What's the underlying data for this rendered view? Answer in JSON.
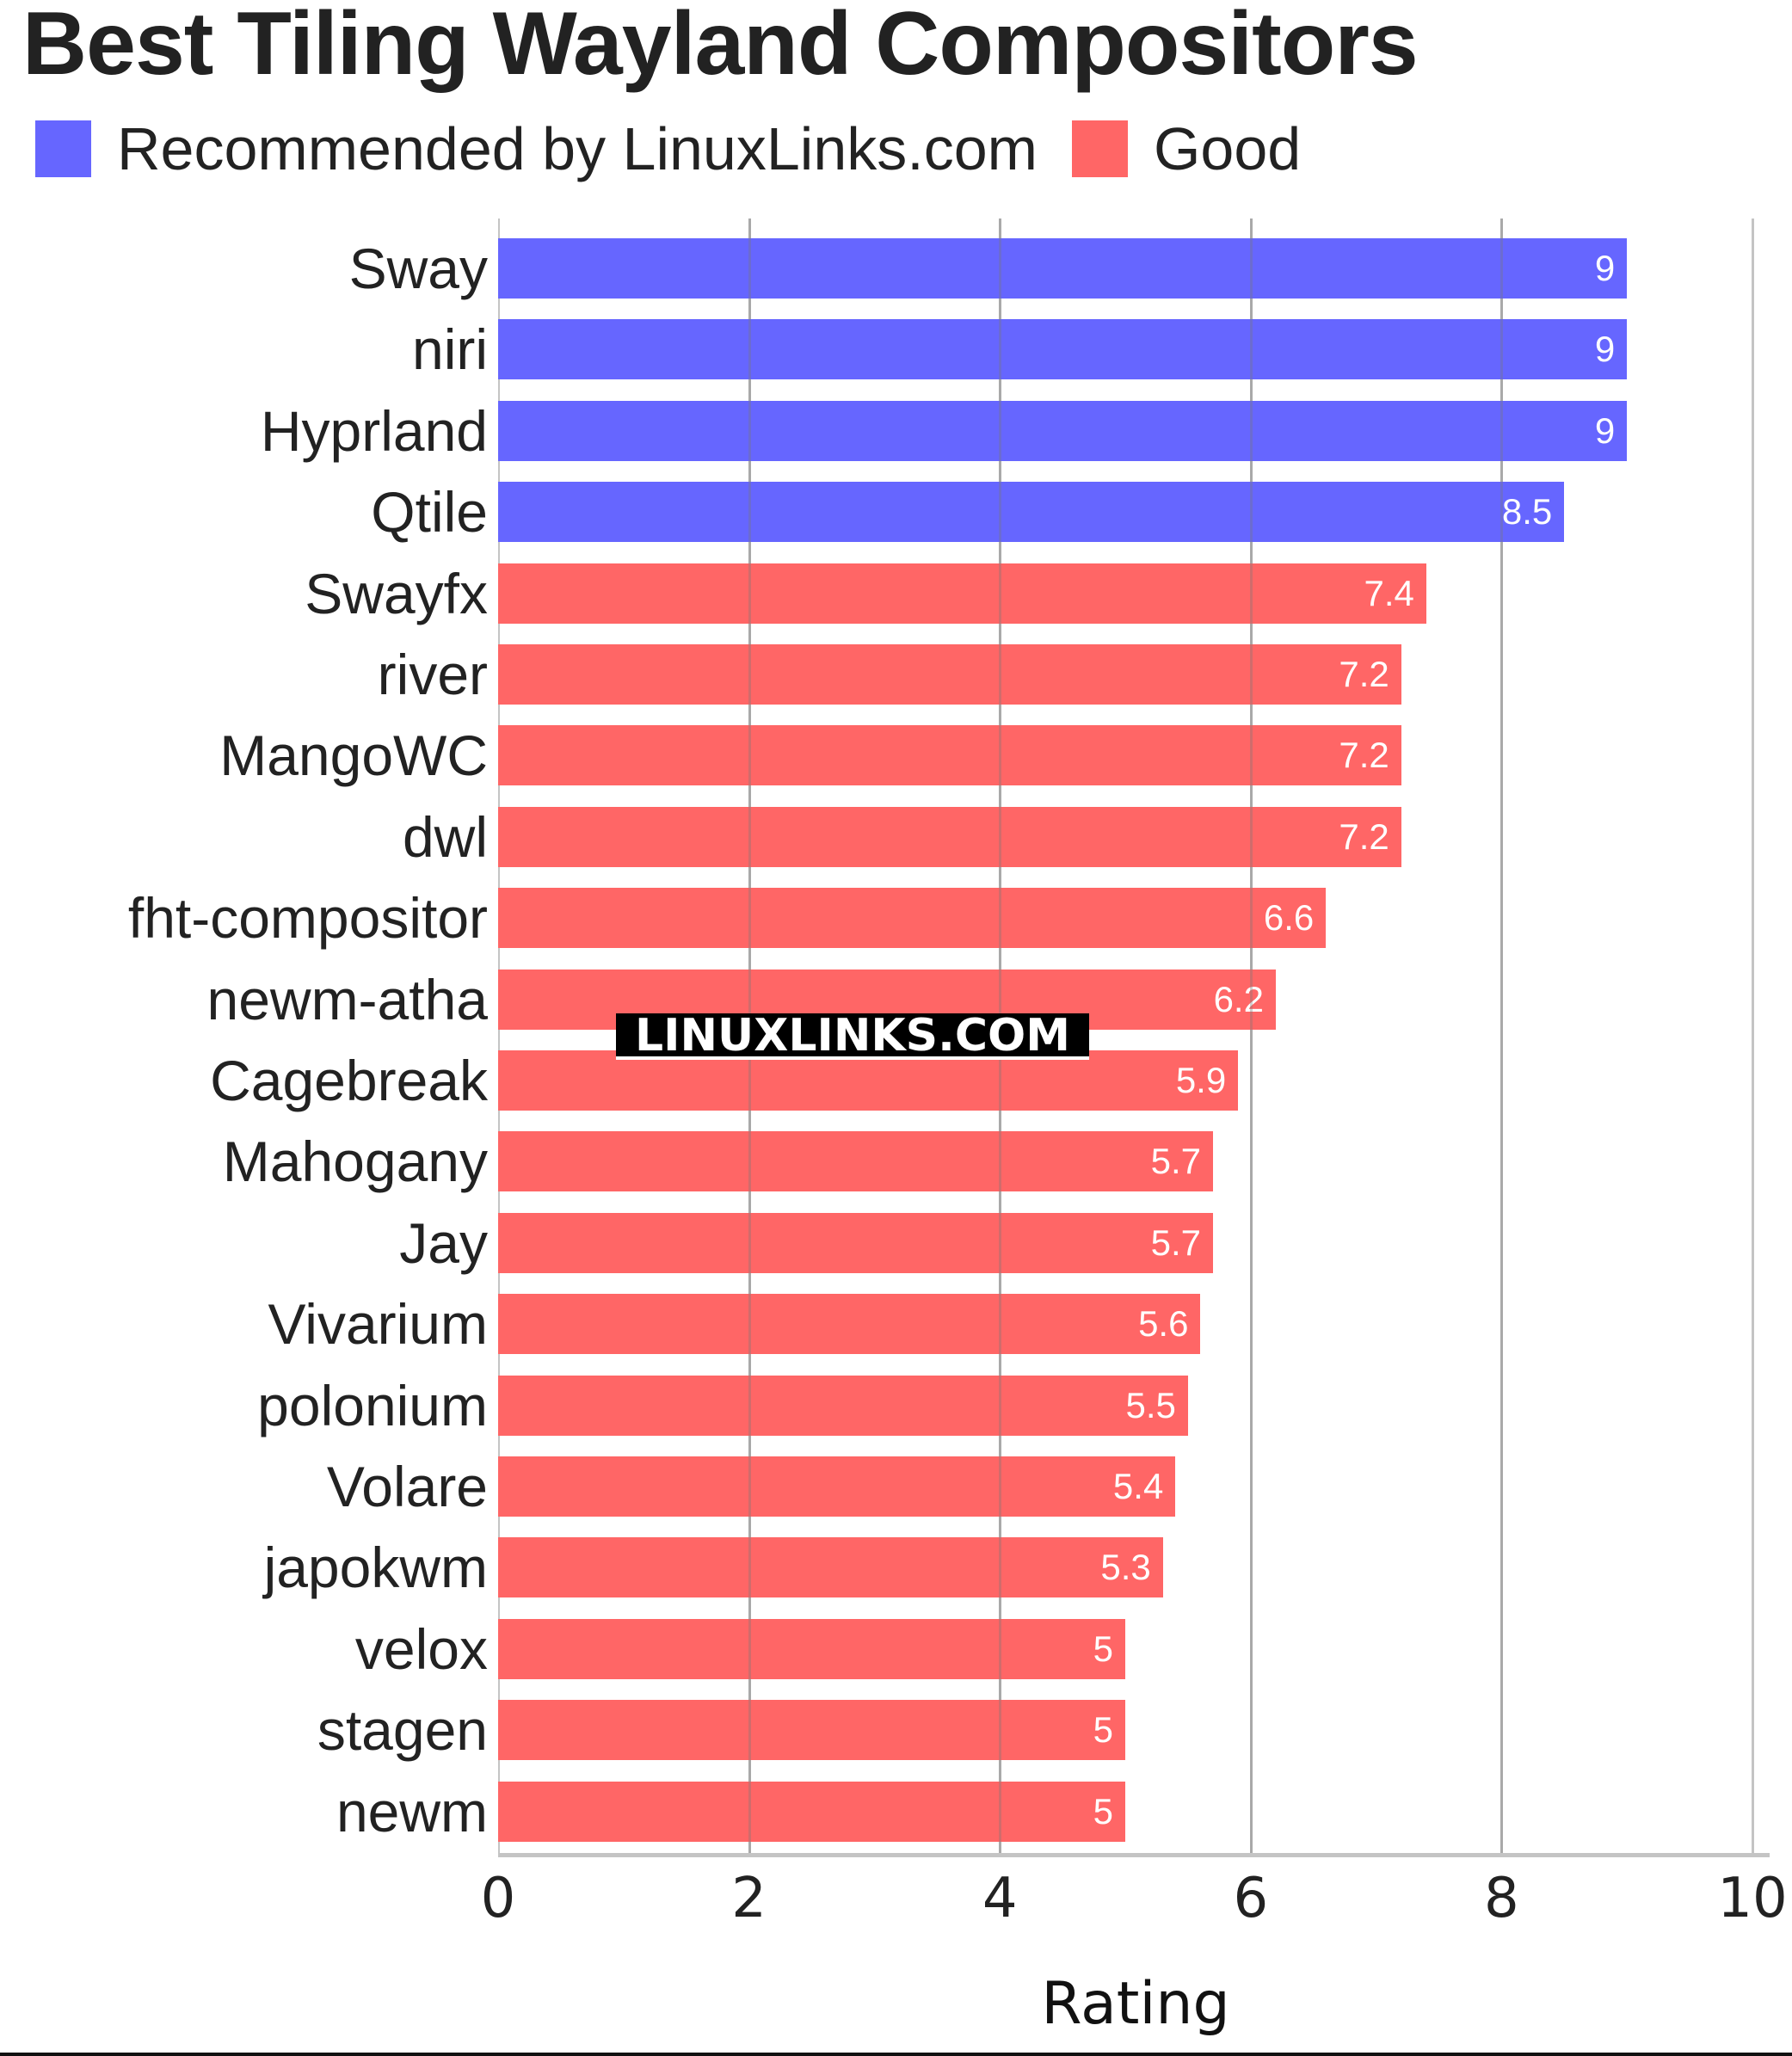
{
  "title": "Best Tiling Wayland Compositors",
  "legend": [
    {
      "label": "Recommended by LinuxLinks.com",
      "color": "#6666ff"
    },
    {
      "label": "Good",
      "color": "#ff6666"
    }
  ],
  "watermark": "LINUXLINKS.COM",
  "chart_data": {
    "type": "bar",
    "orientation": "horizontal",
    "title": "Best Tiling Wayland Compositors",
    "xlabel": "Rating",
    "ylabel": "",
    "xlim": [
      0,
      10
    ],
    "x_ticks": [
      0,
      2,
      4,
      6,
      8,
      10
    ],
    "grid": true,
    "legend_position": "top-left",
    "categories": [
      "Sway",
      "niri",
      "Hyprland",
      "Qtile",
      "Swayfx",
      "river",
      "MangoWC",
      "dwl",
      "fht-compositor",
      "newm-atha",
      "Cagebreak",
      "Mahogany",
      "Jay",
      "Vivarium",
      "polonium",
      "Volare",
      "japokwm",
      "velox",
      "stagen",
      "newm"
    ],
    "values": [
      9,
      9,
      9,
      8.5,
      7.4,
      7.2,
      7.2,
      7.2,
      6.6,
      6.2,
      5.9,
      5.7,
      5.7,
      5.6,
      5.5,
      5.4,
      5.3,
      5,
      5,
      5
    ],
    "value_labels": [
      "9",
      "9",
      "9",
      "8.5",
      "7.4",
      "7.2",
      "7.2",
      "7.2",
      "6.6",
      "6.2",
      "5.9",
      "5.7",
      "5.7",
      "5.6",
      "5.5",
      "5.4",
      "5.3",
      "5",
      "5",
      "5"
    ],
    "series_membership": [
      "Recommended by LinuxLinks.com",
      "Recommended by LinuxLinks.com",
      "Recommended by LinuxLinks.com",
      "Recommended by LinuxLinks.com",
      "Good",
      "Good",
      "Good",
      "Good",
      "Good",
      "Good",
      "Good",
      "Good",
      "Good",
      "Good",
      "Good",
      "Good",
      "Good",
      "Good",
      "Good",
      "Good"
    ],
    "series": [
      {
        "name": "Recommended by LinuxLinks.com",
        "color": "#6666ff",
        "categories": [
          "Sway",
          "niri",
          "Hyprland",
          "Qtile"
        ],
        "values": [
          9,
          9,
          9,
          8.5
        ]
      },
      {
        "name": "Good",
        "color": "#ff6666",
        "categories": [
          "Swayfx",
          "river",
          "MangoWC",
          "dwl",
          "fht-compositor",
          "newm-atha",
          "Cagebreak",
          "Mahogany",
          "Jay",
          "Vivarium",
          "polonium",
          "Volare",
          "japokwm",
          "velox",
          "stagen",
          "newm"
        ],
        "values": [
          7.4,
          7.2,
          7.2,
          7.2,
          6.6,
          6.2,
          5.9,
          5.7,
          5.7,
          5.6,
          5.5,
          5.4,
          5.3,
          5,
          5,
          5
        ]
      }
    ]
  }
}
